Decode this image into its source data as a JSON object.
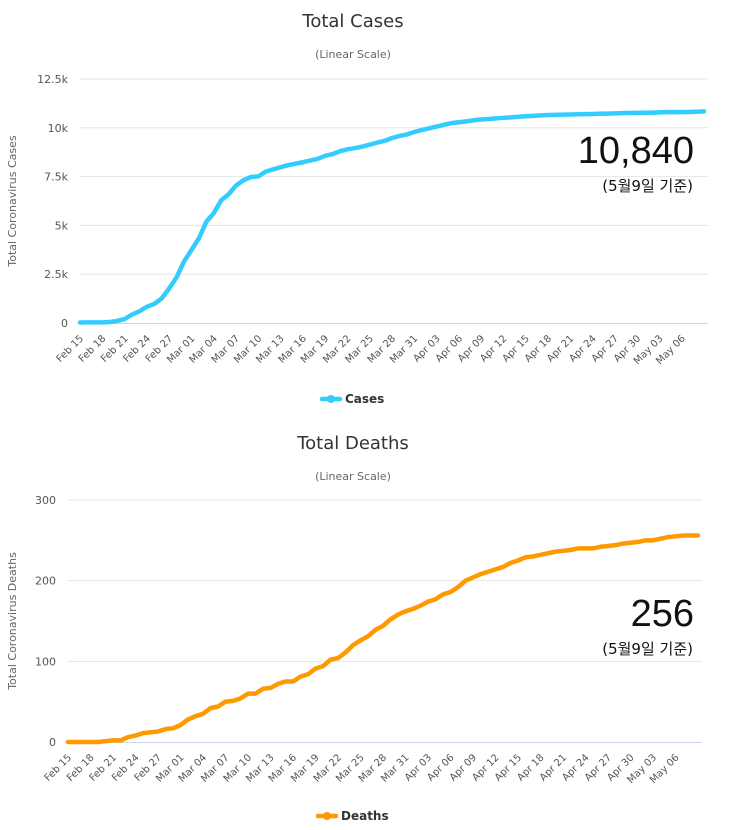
{
  "chart_data": [
    {
      "type": "line",
      "title": "Total Cases",
      "subtitle": "(Linear Scale)",
      "ylabel": "Total Coronavirus Cases",
      "ylim": [
        0,
        12500
      ],
      "yticks": [
        0,
        2500,
        5000,
        7500,
        10000,
        12500
      ],
      "ytick_labels": [
        "0",
        "2.5k",
        "5k",
        "7.5k",
        "10k",
        "12.5k"
      ],
      "xtick_labels": [
        "Feb 15",
        "Feb 18",
        "Feb 21",
        "Feb 24",
        "Feb 27",
        "Mar 01",
        "Mar 04",
        "Mar 07",
        "Mar 10",
        "Mar 13",
        "Mar 16",
        "Mar 19",
        "Mar 22",
        "Mar 25",
        "Mar 28",
        "Mar 31",
        "Apr 03",
        "Apr 06",
        "Apr 09",
        "Apr 12",
        "Apr 15",
        "Apr 18",
        "Apr 21",
        "Apr 24",
        "Apr 27",
        "Apr 30",
        "May 03",
        "May 06"
      ],
      "grid": true,
      "legend_position": "bottom-center",
      "annotation": {
        "value_text": "10,840",
        "note": "(5월9일 기준)"
      },
      "series": [
        {
          "name": "Cases",
          "color": "#33ccff",
          "x": [
            "Feb 15",
            "Feb 16",
            "Feb 17",
            "Feb 18",
            "Feb 19",
            "Feb 20",
            "Feb 21",
            "Feb 22",
            "Feb 23",
            "Feb 24",
            "Feb 25",
            "Feb 26",
            "Feb 27",
            "Feb 28",
            "Feb 29",
            "Mar 01",
            "Mar 02",
            "Mar 03",
            "Mar 04",
            "Mar 05",
            "Mar 06",
            "Mar 07",
            "Mar 08",
            "Mar 09",
            "Mar 10",
            "Mar 11",
            "Mar 12",
            "Mar 13",
            "Mar 14",
            "Mar 15",
            "Mar 16",
            "Mar 17",
            "Mar 18",
            "Mar 19",
            "Mar 20",
            "Mar 21",
            "Mar 22",
            "Mar 23",
            "Mar 24",
            "Mar 25",
            "Mar 26",
            "Mar 27",
            "Mar 28",
            "Mar 29",
            "Mar 30",
            "Mar 31",
            "Apr 01",
            "Apr 02",
            "Apr 03",
            "Apr 04",
            "Apr 05",
            "Apr 06",
            "Apr 07",
            "Apr 08",
            "Apr 09",
            "Apr 10",
            "Apr 11",
            "Apr 12",
            "Apr 13",
            "Apr 14",
            "Apr 15",
            "Apr 16",
            "Apr 17",
            "Apr 18",
            "Apr 19",
            "Apr 20",
            "Apr 21",
            "Apr 22",
            "Apr 23",
            "Apr 24",
            "Apr 25",
            "Apr 26",
            "Apr 27",
            "Apr 28",
            "Apr 29",
            "Apr 30",
            "May 01",
            "May 02",
            "May 03",
            "May 04",
            "May 05",
            "May 06",
            "May 07",
            "May 08",
            "May 09"
          ],
          "values": [
            28,
            29,
            30,
            31,
            51,
            104,
            204,
            433,
            602,
            833,
            977,
            1261,
            1766,
            2337,
            3150,
            3736,
            4335,
            5186,
            5621,
            6284,
            6593,
            7041,
            7313,
            7478,
            7513,
            7755,
            7869,
            7979,
            8086,
            8162,
            8236,
            8320,
            8413,
            8565,
            8652,
            8799,
            8897,
            8961,
            9037,
            9137,
            9241,
            9332,
            9478,
            9583,
            9661,
            9786,
            9887,
            9976,
            10062,
            10156,
            10237,
            10284,
            10331,
            10384,
            10423,
            10450,
            10480,
            10512,
            10537,
            10564,
            10591,
            10613,
            10635,
            10653,
            10661,
            10674,
            10683,
            10694,
            10702,
            10708,
            10718,
            10728,
            10738,
            10752,
            10761,
            10765,
            10774,
            10780,
            10793,
            10801,
            10804,
            10806,
            10810,
            10822,
            10840
          ]
        }
      ]
    },
    {
      "type": "line",
      "title": "Total Deaths",
      "subtitle": "(Linear Scale)",
      "ylabel": "Total Coronavirus Deaths",
      "ylim": [
        0,
        300
      ],
      "yticks": [
        0,
        100,
        200,
        300
      ],
      "ytick_labels": [
        "0",
        "100",
        "200",
        "300"
      ],
      "xtick_labels": [
        "Feb 15",
        "Feb 18",
        "Feb 21",
        "Feb 24",
        "Feb 27",
        "Mar 01",
        "Mar 04",
        "Mar 07",
        "Mar 10",
        "Mar 13",
        "Mar 16",
        "Mar 19",
        "Mar 22",
        "Mar 25",
        "Mar 28",
        "Mar 31",
        "Apr 03",
        "Apr 06",
        "Apr 09",
        "Apr 12",
        "Apr 15",
        "Apr 18",
        "Apr 21",
        "Apr 24",
        "Apr 27",
        "Apr 30",
        "May 03",
        "May 06"
      ],
      "grid": true,
      "legend_position": "bottom-center",
      "annotation": {
        "value_text": "256",
        "note": "(5월9일 기준)"
      },
      "series": [
        {
          "name": "Deaths",
          "color": "#ff9900",
          "x": [
            "Feb 15",
            "Feb 16",
            "Feb 17",
            "Feb 18",
            "Feb 19",
            "Feb 20",
            "Feb 21",
            "Feb 22",
            "Feb 23",
            "Feb 24",
            "Feb 25",
            "Feb 26",
            "Feb 27",
            "Feb 28",
            "Feb 29",
            "Mar 01",
            "Mar 02",
            "Mar 03",
            "Mar 04",
            "Mar 05",
            "Mar 06",
            "Mar 07",
            "Mar 08",
            "Mar 09",
            "Mar 10",
            "Mar 11",
            "Mar 12",
            "Mar 13",
            "Mar 14",
            "Mar 15",
            "Mar 16",
            "Mar 17",
            "Mar 18",
            "Mar 19",
            "Mar 20",
            "Mar 21",
            "Mar 22",
            "Mar 23",
            "Mar 24",
            "Mar 25",
            "Mar 26",
            "Mar 27",
            "Mar 28",
            "Mar 29",
            "Mar 30",
            "Mar 31",
            "Apr 01",
            "Apr 02",
            "Apr 03",
            "Apr 04",
            "Apr 05",
            "Apr 06",
            "Apr 07",
            "Apr 08",
            "Apr 09",
            "Apr 10",
            "Apr 11",
            "Apr 12",
            "Apr 13",
            "Apr 14",
            "Apr 15",
            "Apr 16",
            "Apr 17",
            "Apr 18",
            "Apr 19",
            "Apr 20",
            "Apr 21",
            "Apr 22",
            "Apr 23",
            "Apr 24",
            "Apr 25",
            "Apr 26",
            "Apr 27",
            "Apr 28",
            "Apr 29",
            "Apr 30",
            "May 01",
            "May 02",
            "May 03",
            "May 04",
            "May 05",
            "May 06",
            "May 07",
            "May 08",
            "May 09"
          ],
          "values": [
            0,
            0,
            0,
            0,
            0,
            1,
            2,
            2,
            6,
            8,
            11,
            12,
            13,
            16,
            17,
            21,
            28,
            32,
            35,
            42,
            44,
            50,
            51,
            54,
            60,
            60,
            66,
            67,
            72,
            75,
            75,
            81,
            84,
            91,
            94,
            102,
            104,
            111,
            120,
            126,
            131,
            139,
            144,
            152,
            158,
            162,
            165,
            169,
            174,
            177,
            183,
            186,
            192,
            200,
            204,
            208,
            211,
            214,
            217,
            222,
            225,
            229,
            230,
            232,
            234,
            236,
            237,
            238,
            240,
            240,
            240,
            242,
            243,
            244,
            246,
            247,
            248,
            250,
            250,
            252,
            254,
            255,
            256,
            256,
            256
          ]
        }
      ]
    }
  ]
}
